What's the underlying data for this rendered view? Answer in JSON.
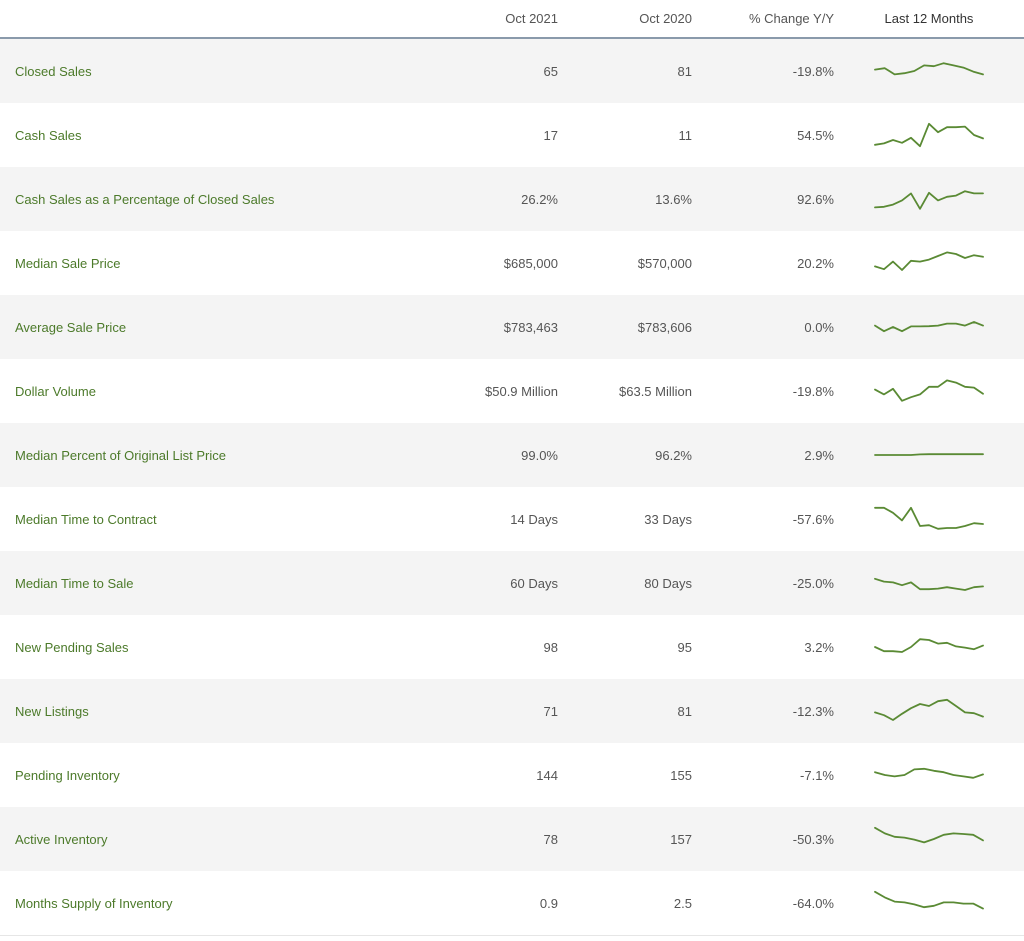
{
  "header": {
    "col_metric": "",
    "col_current": "Oct 2021",
    "col_previous": "Oct 2020",
    "col_change": "% Change Y/Y",
    "col_trend": "Last 12 Months"
  },
  "colors": {
    "label_green": "#4c7a2a",
    "sparkline_green": "#5a8a34",
    "row_alt_bg": "#f4f4f4",
    "header_rule": "#8a9aab",
    "value_text": "#555555"
  },
  "rows": [
    {
      "label": "Closed Sales",
      "current": "65",
      "previous": "81",
      "change": "-19.8%",
      "trend": [
        0.45,
        0.4,
        0.62,
        0.58,
        0.5,
        0.3,
        0.33,
        0.22,
        0.3,
        0.38,
        0.52,
        0.62
      ]
    },
    {
      "label": "Cash Sales",
      "current": "17",
      "previous": "11",
      "change": "54.5%",
      "trend": [
        0.85,
        0.8,
        0.68,
        0.78,
        0.6,
        0.9,
        0.1,
        0.4,
        0.22,
        0.22,
        0.2,
        0.5,
        0.62
      ]
    },
    {
      "label": "Cash Sales as a Percentage of Closed Sales",
      "current": "26.2%",
      "previous": "13.6%",
      "change": "92.6%",
      "trend": [
        0.8,
        0.78,
        0.7,
        0.55,
        0.3,
        0.85,
        0.28,
        0.55,
        0.42,
        0.38,
        0.22,
        0.3,
        0.3
      ]
    },
    {
      "label": "Median Sale Price",
      "current": "$685,000",
      "previous": "$570,000",
      "change": "20.2%",
      "trend": [
        0.62,
        0.72,
        0.45,
        0.75,
        0.42,
        0.45,
        0.38,
        0.25,
        0.12,
        0.18,
        0.32,
        0.22,
        0.28
      ]
    },
    {
      "label": "Average Sale Price",
      "current": "$783,463",
      "previous": "$783,606",
      "change": "0.0%",
      "trend": [
        0.45,
        0.65,
        0.5,
        0.65,
        0.48,
        0.48,
        0.47,
        0.45,
        0.38,
        0.38,
        0.45,
        0.32,
        0.45
      ]
    },
    {
      "label": "Dollar Volume",
      "current": "$50.9 Million",
      "previous": "$63.5 Million",
      "change": "-19.8%",
      "trend": [
        0.45,
        0.62,
        0.42,
        0.85,
        0.72,
        0.62,
        0.35,
        0.35,
        0.12,
        0.2,
        0.35,
        0.38,
        0.6
      ]
    },
    {
      "label": "Median Percent of Original List Price",
      "current": "99.0%",
      "previous": "96.2%",
      "change": "2.9%",
      "trend": [
        0.5,
        0.5,
        0.5,
        0.5,
        0.5,
        0.48,
        0.47,
        0.47,
        0.47,
        0.47,
        0.47,
        0.47,
        0.47
      ]
    },
    {
      "label": "Median Time to Contract",
      "current": "14 Days",
      "previous": "33 Days",
      "change": "-57.6%",
      "trend": [
        0.1,
        0.1,
        0.28,
        0.55,
        0.1,
        0.75,
        0.72,
        0.85,
        0.82,
        0.82,
        0.75,
        0.65,
        0.68
      ]
    },
    {
      "label": "Median Time to Sale",
      "current": "60 Days",
      "previous": "80 Days",
      "change": "-25.0%",
      "trend": [
        0.35,
        0.45,
        0.48,
        0.58,
        0.48,
        0.72,
        0.72,
        0.7,
        0.65,
        0.7,
        0.75,
        0.65,
        0.62
      ]
    },
    {
      "label": "New Pending Sales",
      "current": "98",
      "previous": "95",
      "change": "3.2%",
      "trend": [
        0.5,
        0.65,
        0.65,
        0.68,
        0.5,
        0.22,
        0.25,
        0.38,
        0.35,
        0.48,
        0.52,
        0.58,
        0.45
      ]
    },
    {
      "label": "New Listings",
      "current": "71",
      "previous": "81",
      "change": "-12.3%",
      "trend": [
        0.55,
        0.65,
        0.82,
        0.6,
        0.4,
        0.25,
        0.32,
        0.15,
        0.1,
        0.32,
        0.55,
        0.58,
        0.7
      ]
    },
    {
      "label": "Pending Inventory",
      "current": "144",
      "previous": "155",
      "change": "-7.1%",
      "trend": [
        0.4,
        0.5,
        0.55,
        0.5,
        0.3,
        0.28,
        0.35,
        0.4,
        0.5,
        0.55,
        0.6,
        0.48
      ]
    },
    {
      "label": "Active Inventory",
      "current": "78",
      "previous": "157",
      "change": "-50.3%",
      "trend": [
        0.1,
        0.3,
        0.42,
        0.45,
        0.52,
        0.62,
        0.5,
        0.35,
        0.3,
        0.32,
        0.35,
        0.55
      ]
    },
    {
      "label": "Months Supply of Inventory",
      "current": "0.9",
      "previous": "2.5",
      "change": "-64.0%",
      "trend": [
        0.1,
        0.3,
        0.45,
        0.48,
        0.55,
        0.65,
        0.6,
        0.48,
        0.48,
        0.52,
        0.52,
        0.7
      ]
    }
  ]
}
